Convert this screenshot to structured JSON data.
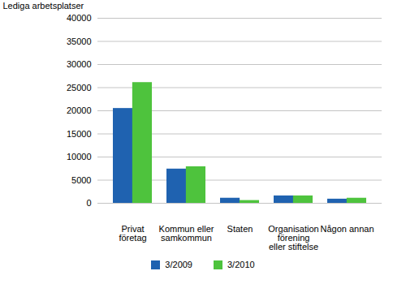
{
  "chart_data": {
    "type": "bar",
    "y_label": "Lediga arbetsplatser",
    "categories": [
      "Privat\nföretag",
      "Kommun eller\nsamkommun",
      "Staten",
      "Organisation\nförening\neller stiftelse",
      "Någon annan"
    ],
    "series": [
      {
        "name": "3/2009",
        "color": "#1f62b0",
        "values": [
          20500,
          7400,
          1100,
          1600,
          900
        ]
      },
      {
        "name": "3/2010",
        "color": "#4ec33d",
        "values": [
          26100,
          7900,
          600,
          1600,
          1100
        ]
      }
    ],
    "ylim": [
      0,
      40000
    ],
    "yticks": [
      0,
      5000,
      10000,
      15000,
      20000,
      25000,
      30000,
      35000,
      40000
    ],
    "grid": true,
    "legend": "bottom"
  }
}
